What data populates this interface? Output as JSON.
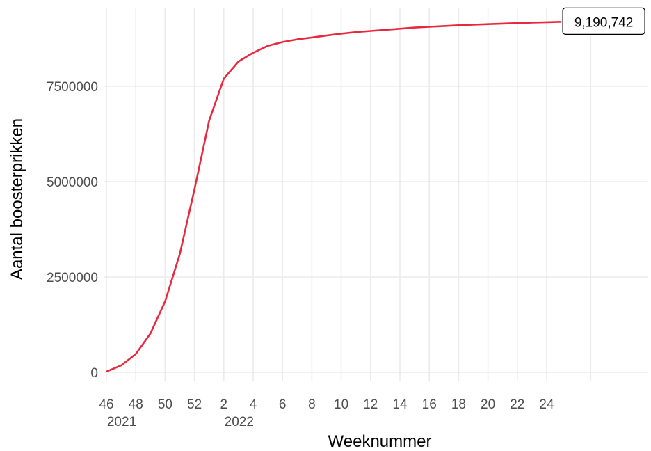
{
  "chart_data": {
    "type": "line",
    "title": "",
    "xlabel": "Weeknummer",
    "ylabel": "Aantal boosterprikken",
    "ylim": [
      0,
      9200000
    ],
    "y_ticks": [
      0,
      2500000,
      5000000,
      7500000
    ],
    "y_tick_labels": [
      "0",
      "2500000",
      "5000000",
      "7500000"
    ],
    "x_tick_labels": [
      "46",
      "48",
      "50",
      "52",
      "2",
      "4",
      "6",
      "8",
      "10",
      "12",
      "14",
      "16",
      "18",
      "20",
      "22",
      "24"
    ],
    "x_year_labels": [
      {
        "label": "2021",
        "week_index": 0
      },
      {
        "label": "2022",
        "week_index": 4
      }
    ],
    "grid": true,
    "line_color": "#e8283f",
    "end_label": "9,190,742",
    "series": [
      {
        "x": [
          "46",
          "47",
          "48",
          "49",
          "50",
          "51",
          "52",
          "1",
          "2",
          "3",
          "4",
          "5",
          "6",
          "7",
          "8",
          "9",
          "10",
          "11",
          "12",
          "13",
          "14",
          "15",
          "16",
          "17",
          "18",
          "19",
          "20",
          "21",
          "22",
          "23",
          "24",
          "25"
        ],
        "values": [
          20000,
          180000,
          480000,
          1020000,
          1860000,
          3100000,
          4800000,
          6600000,
          7700000,
          8150000,
          8380000,
          8560000,
          8660000,
          8730000,
          8780000,
          8830000,
          8880000,
          8920000,
          8950000,
          8980000,
          9010000,
          9040000,
          9060000,
          9080000,
          9100000,
          9115000,
          9130000,
          9145000,
          9158000,
          9170000,
          9180000,
          9190742
        ]
      }
    ]
  }
}
